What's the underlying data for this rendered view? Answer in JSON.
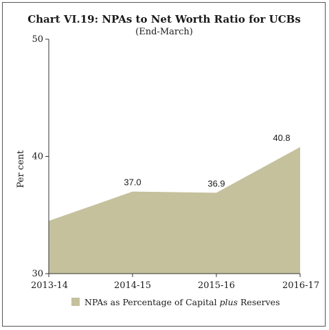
{
  "chart_data": {
    "type": "area",
    "title": "Chart VI.19: NPAs to Net Worth Ratio for UCBs",
    "subtitle": "(End-March)",
    "ylabel": "Per cent",
    "xlabel": "",
    "ylim": [
      30,
      50
    ],
    "yticks": [
      "30",
      "40",
      "50"
    ],
    "categories": [
      "2013-14",
      "2014-15",
      "2015-16",
      "2016-17"
    ],
    "series": [
      {
        "name": "NPAs as Percentage of Capital plus Reserves",
        "values": [
          34.5,
          37.0,
          36.9,
          40.8
        ],
        "labels": [
          "",
          "37.0",
          "36.9",
          "40.8"
        ],
        "color": "#c5c19d"
      }
    ],
    "legend": {
      "position": "bottom",
      "parts": [
        "NPAs as Percentage of Capital ",
        "plus",
        " Reserves"
      ]
    },
    "grid": false
  }
}
